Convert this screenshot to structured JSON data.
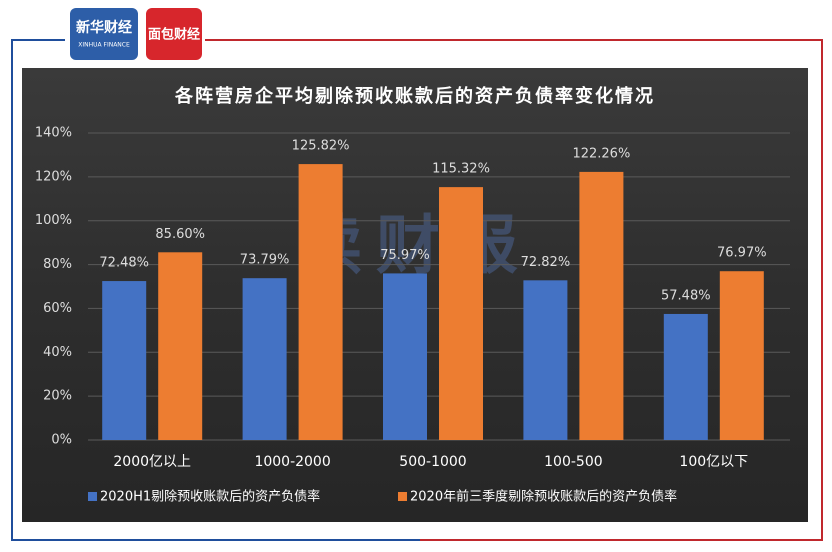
{
  "logos": {
    "left": "新华财经",
    "left_sub": "XINHUA FINANCE",
    "right": "面包财经"
  },
  "watermark": "读财报",
  "chart_data": {
    "type": "bar",
    "title": "各阵营房企平均剔除预收账款后的资产负债率变化情况",
    "categories": [
      "2000亿以上",
      "1000-2000",
      "500-1000",
      "100-500",
      "100亿以下"
    ],
    "series": [
      {
        "name": "2020H1剔除预收账款后的资产负债率",
        "color": "#4472c4",
        "values": [
          72.48,
          73.79,
          75.97,
          72.82,
          57.48
        ],
        "value_labels": [
          "72.48%",
          "73.79%",
          "75.97%",
          "72.82%",
          "57.48%"
        ]
      },
      {
        "name": "2020年前三季度剔除预收账款后的资产负债率",
        "color": "#ed7d31",
        "values": [
          85.6,
          125.82,
          115.32,
          122.26,
          76.97
        ],
        "value_labels": [
          "85.60%",
          "125.82%",
          "115.32%",
          "122.26%",
          "76.97%"
        ]
      }
    ],
    "ylim": [
      0,
      140
    ],
    "yticks": [
      {
        "value": 0,
        "label": "0%"
      },
      {
        "value": 20,
        "label": "20%"
      },
      {
        "value": 40,
        "label": "40%"
      },
      {
        "value": 60,
        "label": "60%"
      },
      {
        "value": 80,
        "label": "80%"
      },
      {
        "value": 100,
        "label": "100%"
      },
      {
        "value": 120,
        "label": "120%"
      },
      {
        "value": 140,
        "label": "140%"
      }
    ],
    "grid": true,
    "legend": "bottom"
  }
}
